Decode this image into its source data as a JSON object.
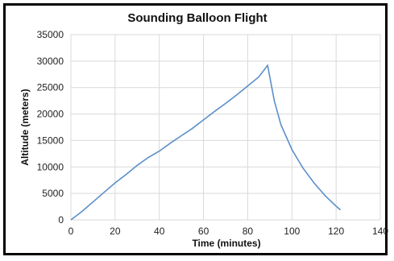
{
  "chart_data": {
    "type": "line",
    "title": "Sounding Balloon Flight",
    "xlabel": "Time (minutes)",
    "ylabel": "Altitude (meters)",
    "xlim": [
      0,
      140
    ],
    "ylim": [
      0,
      35000
    ],
    "xticks": [
      "0",
      "20",
      "40",
      "60",
      "80",
      "100",
      "120",
      "140"
    ],
    "yticks": [
      "0",
      "5000",
      "10000",
      "15000",
      "20000",
      "25000",
      "30000",
      "35000"
    ],
    "grid": true,
    "legend": "none",
    "line_color": "#5b8fc9",
    "series": [
      {
        "x": [
          0,
          5,
          10,
          15,
          20,
          25,
          30,
          35,
          40,
          45,
          50,
          55,
          60,
          65,
          70,
          75,
          80,
          85,
          89,
          90,
          92,
          95,
          100,
          105,
          110,
          115,
          120,
          122
        ],
        "y": [
          0,
          1600,
          3400,
          5200,
          7000,
          8600,
          10300,
          11800,
          13000,
          14500,
          15900,
          17300,
          18900,
          20500,
          22000,
          23600,
          25300,
          27000,
          29200,
          27000,
          22600,
          18000,
          13300,
          9800,
          7000,
          4600,
          2600,
          1900
        ]
      }
    ]
  }
}
